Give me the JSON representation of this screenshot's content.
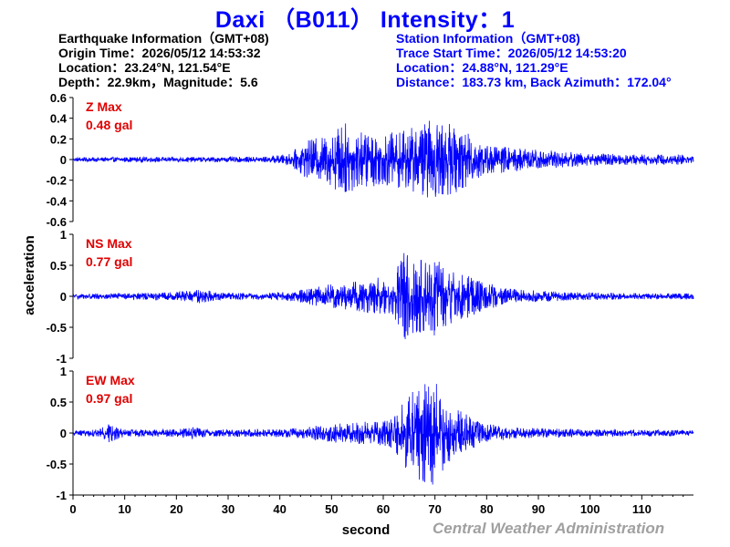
{
  "title": "Daxi （B011） Intensity：1",
  "earthquake_info": {
    "header": "Earthquake Information（GMT+08)",
    "origin_time": "Origin Time：2026/05/12 14:53:32",
    "location": "Location：23.24°N, 121.54°E",
    "depth_magnitude": "Depth：22.9km，Magnitude：5.6"
  },
  "station_info": {
    "header": "Station Information（GMT+08)",
    "trace_start": "Trace Start Time：2026/05/12 14:53:20",
    "location": "Location：24.88°N, 121.29°E",
    "distance_azimuth": "Distance：183.73 km, Back Azimuth：172.04°"
  },
  "credit": "Central Weather Administration",
  "colors": {
    "title": "#0000ff",
    "trace": "#0000ff",
    "max_label": "#e00000",
    "credit": "#a0a0a0"
  },
  "chart_data": {
    "type": "line",
    "xlabel": "second",
    "ylabel": "acceleration",
    "xlim": [
      0,
      120
    ],
    "x_ticks": [
      "0",
      "10",
      "20",
      "30",
      "40",
      "50",
      "60",
      "70",
      "80",
      "90",
      "100",
      "110"
    ],
    "panels": [
      {
        "name": "Z",
        "max_label": "Z Max",
        "max_value": "0.48 gal",
        "ylim": [
          -0.6,
          0.6
        ],
        "y_ticks": [
          "0.6",
          "0.4",
          "0.2",
          "0",
          "-0.2",
          "-0.4",
          "-0.6"
        ],
        "envelope": [
          [
            0,
            0.02
          ],
          [
            10,
            0.025
          ],
          [
            20,
            0.025
          ],
          [
            30,
            0.025
          ],
          [
            38,
            0.03
          ],
          [
            42,
            0.06
          ],
          [
            45,
            0.18
          ],
          [
            50,
            0.25
          ],
          [
            52,
            0.38
          ],
          [
            55,
            0.28
          ],
          [
            60,
            0.25
          ],
          [
            65,
            0.3
          ],
          [
            70,
            0.4
          ],
          [
            75,
            0.3
          ],
          [
            80,
            0.15
          ],
          [
            85,
            0.12
          ],
          [
            90,
            0.1
          ],
          [
            95,
            0.08
          ],
          [
            100,
            0.06
          ],
          [
            110,
            0.05
          ],
          [
            120,
            0.05
          ]
        ]
      },
      {
        "name": "NS",
        "max_label": "NS Max",
        "max_value": "0.77 gal",
        "ylim": [
          -1,
          1
        ],
        "y_ticks": [
          "1",
          "0.5",
          "0",
          "-0.5",
          "-1"
        ],
        "envelope": [
          [
            0,
            0.04
          ],
          [
            10,
            0.05
          ],
          [
            20,
            0.07
          ],
          [
            25,
            0.12
          ],
          [
            28,
            0.06
          ],
          [
            35,
            0.05
          ],
          [
            40,
            0.06
          ],
          [
            45,
            0.12
          ],
          [
            50,
            0.2
          ],
          [
            55,
            0.25
          ],
          [
            58,
            0.3
          ],
          [
            62,
            0.3
          ],
          [
            64,
            0.75
          ],
          [
            68,
            0.6
          ],
          [
            70,
            0.65
          ],
          [
            72,
            0.5
          ],
          [
            75,
            0.4
          ],
          [
            80,
            0.22
          ],
          [
            85,
            0.12
          ],
          [
            90,
            0.09
          ],
          [
            95,
            0.07
          ],
          [
            100,
            0.06
          ],
          [
            110,
            0.05
          ],
          [
            120,
            0.05
          ]
        ]
      },
      {
        "name": "EW",
        "max_label": "EW Max",
        "max_value": "0.97 gal",
        "ylim": [
          -1,
          1
        ],
        "y_ticks": [
          "1",
          "0.5",
          "0",
          "-0.5",
          "-1"
        ],
        "envelope": [
          [
            0,
            0.04
          ],
          [
            5,
            0.06
          ],
          [
            7,
            0.15
          ],
          [
            10,
            0.06
          ],
          [
            20,
            0.06
          ],
          [
            23,
            0.1
          ],
          [
            26,
            0.06
          ],
          [
            40,
            0.06
          ],
          [
            45,
            0.1
          ],
          [
            50,
            0.15
          ],
          [
            55,
            0.18
          ],
          [
            60,
            0.2
          ],
          [
            62,
            0.25
          ],
          [
            64,
            0.55
          ],
          [
            66,
            0.7
          ],
          [
            70,
            0.95
          ],
          [
            72,
            0.5
          ],
          [
            75,
            0.35
          ],
          [
            80,
            0.15
          ],
          [
            85,
            0.1
          ],
          [
            90,
            0.08
          ],
          [
            95,
            0.07
          ],
          [
            100,
            0.06
          ],
          [
            110,
            0.05
          ],
          [
            120,
            0.05
          ]
        ]
      }
    ]
  }
}
